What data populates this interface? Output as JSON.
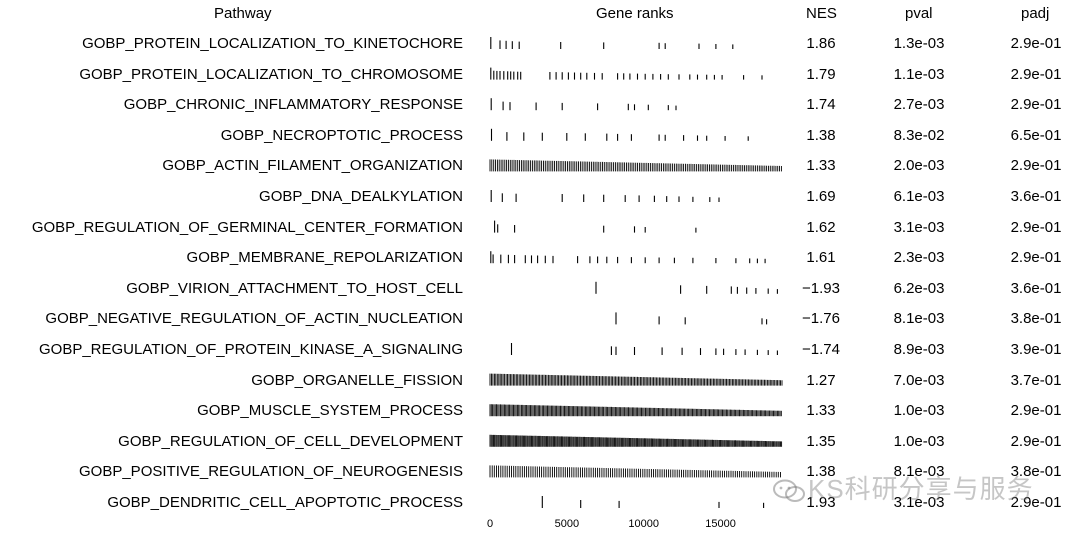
{
  "headers": {
    "pathway": "Pathway",
    "gene_ranks": "Gene ranks",
    "nes": "NES",
    "pval": "pval",
    "padj": "padj"
  },
  "watermark": "KS科研分享与服务",
  "chart_data": {
    "type": "table",
    "x_axis": {
      "ticks": [
        0,
        5000,
        10000,
        15000
      ],
      "tick_labels": [
        "0",
        "5000",
        "10000",
        "15000"
      ],
      "range": [
        0,
        19000
      ]
    },
    "rows": [
      {
        "pathway": "GOBP_PROTEIN_LOCALIZATION_TO_KINETOCHORE",
        "nes": "1.86",
        "pval": "1.3e-03",
        "padj": "2.9e-01",
        "ranks": [
          50,
          650,
          1050,
          1450,
          1900,
          4600,
          7400,
          11000,
          11400,
          13600,
          14700,
          15800
        ]
      },
      {
        "pathway": "GOBP_PROTEIN_LOCALIZATION_TO_CHROMOSOME",
        "nes": "1.79",
        "pval": "1.1e-03",
        "padj": "2.9e-01",
        "ranks": [
          50,
          250,
          450,
          650,
          900,
          1150,
          1350,
          1550,
          1800,
          2000,
          3900,
          4300,
          4700,
          5100,
          5500,
          5900,
          6300,
          6800,
          7300,
          8300,
          8700,
          9100,
          9600,
          10100,
          10600,
          11100,
          11600,
          12300,
          13000,
          13500,
          14100,
          14600,
          15100,
          16500,
          17700
        ]
      },
      {
        "pathway": "GOBP_CHRONIC_INFLAMMATORY_RESPONSE",
        "nes": "1.74",
        "pval": "2.7e-03",
        "padj": "2.9e-01",
        "ranks": [
          80,
          850,
          1300,
          3000,
          4700,
          7000,
          9000,
          9400,
          10300,
          11600,
          12100
        ]
      },
      {
        "pathway": "GOBP_NECROPTOTIC_PROCESS",
        "nes": "1.38",
        "pval": "8.3e-02",
        "padj": "6.5e-01",
        "ranks": [
          100,
          1100,
          2200,
          3400,
          5000,
          6200,
          7600,
          8300,
          9200,
          11000,
          11400,
          12600,
          13500,
          14100,
          15300,
          16800
        ]
      },
      {
        "pathway": "GOBP_ACTIN_FILAMENT_ORGANIZATION",
        "nes": "1.33",
        "pval": "2.0e-03",
        "padj": "2.9e-01",
        "dense": true,
        "dense_range": [
          0,
          19000
        ],
        "dense_step": 120
      },
      {
        "pathway": "GOBP_DNA_DEALKYLATION",
        "nes": "1.69",
        "pval": "6.1e-03",
        "padj": "3.6e-01",
        "ranks": [
          80,
          800,
          1700,
          4700,
          6100,
          7400,
          8800,
          9700,
          10700,
          11500,
          12300,
          13200,
          14300,
          14900
        ]
      },
      {
        "pathway": "GOBP_REGULATION_OF_GERMINAL_CENTER_FORMATION",
        "nes": "1.62",
        "pval": "3.1e-03",
        "padj": "2.9e-01",
        "ranks": [
          300,
          500,
          1600,
          7400,
          9400,
          10100,
          13400
        ]
      },
      {
        "pathway": "GOBP_MEMBRANE_REPOLARIZATION",
        "nes": "1.61",
        "pval": "2.3e-03",
        "padj": "2.9e-01",
        "ranks": [
          50,
          200,
          700,
          1200,
          1600,
          2300,
          2700,
          3100,
          3600,
          4100,
          5700,
          6500,
          7000,
          7600,
          8300,
          9200,
          10100,
          11000,
          12000,
          13200,
          14700,
          16000,
          16900,
          17400,
          17900
        ]
      },
      {
        "pathway": "GOBP_VIRION_ATTACHMENT_TO_HOST_CELL",
        "nes": "−1.93",
        "pval": "6.2e-03",
        "padj": "3.6e-01",
        "ranks": [
          6900,
          12400,
          14100,
          15700,
          16100,
          16700,
          17300,
          18100,
          18700
        ]
      },
      {
        "pathway": "GOBP_NEGATIVE_REGULATION_OF_ACTIN_NUCLEATION",
        "nes": "−1.76",
        "pval": "8.1e-03",
        "padj": "3.8e-01",
        "ranks": [
          8200,
          11000,
          12700,
          17700,
          18000
        ]
      },
      {
        "pathway": "GOBP_REGULATION_OF_PROTEIN_KINASE_A_SIGNALING",
        "nes": "−1.74",
        "pval": "8.9e-03",
        "padj": "3.9e-01",
        "ranks": [
          1400,
          7900,
          8200,
          9400,
          11200,
          12500,
          13700,
          14700,
          15200,
          16000,
          16600,
          17400,
          18100,
          18700
        ]
      },
      {
        "pathway": "GOBP_ORGANELLE_FISSION",
        "nes": "1.27",
        "pval": "7.0e-03",
        "padj": "3.7e-01",
        "dense": true,
        "dense_range": [
          0,
          19000
        ],
        "dense_step": 95
      },
      {
        "pathway": "GOBP_MUSCLE_SYSTEM_PROCESS",
        "nes": "1.33",
        "pval": "1.0e-03",
        "padj": "2.9e-01",
        "dense": true,
        "dense_range": [
          0,
          19000
        ],
        "dense_step": 85
      },
      {
        "pathway": "GOBP_REGULATION_OF_CELL_DEVELOPMENT",
        "nes": "1.35",
        "pval": "1.0e-03",
        "padj": "2.9e-01",
        "dense": true,
        "dense_range": [
          0,
          19000
        ],
        "dense_step": 75
      },
      {
        "pathway": "GOBP_POSITIVE_REGULATION_OF_NEUROGENESIS",
        "nes": "1.38",
        "pval": "8.1e-03",
        "padj": "3.8e-01",
        "dense": true,
        "dense_range": [
          0,
          19000
        ],
        "dense_step": 140
      },
      {
        "pathway": "GOBP_DENDRITIC_CELL_APOPTOTIC_PROCESS",
        "nes": "1.93",
        "pval": "3.1e-03",
        "padj": "2.9e-01",
        "ranks": [
          3400,
          5900,
          8400,
          14900,
          17800
        ]
      }
    ]
  }
}
